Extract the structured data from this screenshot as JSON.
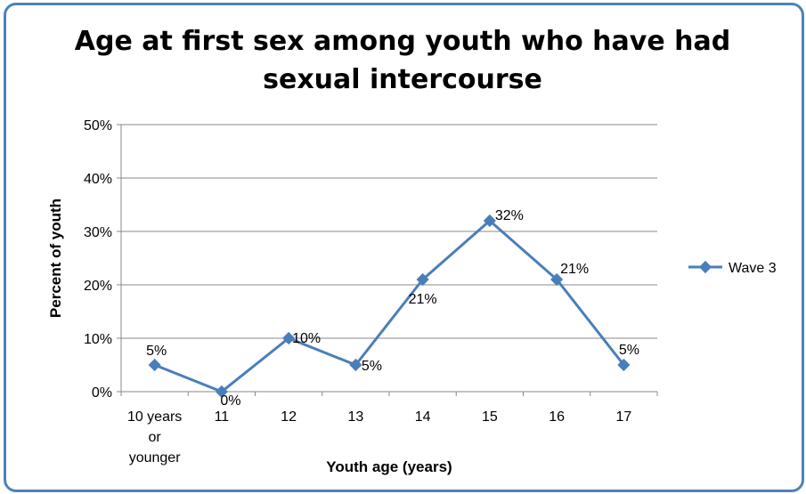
{
  "chart_data": {
    "type": "line",
    "title_lines": [
      "Age at first sex among youth who have had",
      "sexual intercourse"
    ],
    "xlabel": "Youth age (years)",
    "ylabel": "Percent  of youth",
    "categories": [
      [
        "10 years",
        "or",
        "younger"
      ],
      [
        "11"
      ],
      [
        "12"
      ],
      [
        "13"
      ],
      [
        "14"
      ],
      [
        "15"
      ],
      [
        "16"
      ],
      [
        "17"
      ]
    ],
    "series": [
      {
        "name": "Wave 3",
        "values": [
          5,
          0,
          10,
          5,
          21,
          32,
          21,
          5
        ],
        "color": "#4a7ebb"
      }
    ],
    "data_labels": [
      "5%",
      "0%",
      "10%",
      "5%",
      "21%",
      "32%",
      "21%",
      "5%"
    ],
    "y_ticks": [
      "0%",
      "10%",
      "20%",
      "30%",
      "40%",
      "50%"
    ],
    "ylim": [
      0,
      50
    ],
    "grid": true,
    "legend_position": "right",
    "gridline_color": "#888888",
    "frame_color": "#4f81bd"
  }
}
